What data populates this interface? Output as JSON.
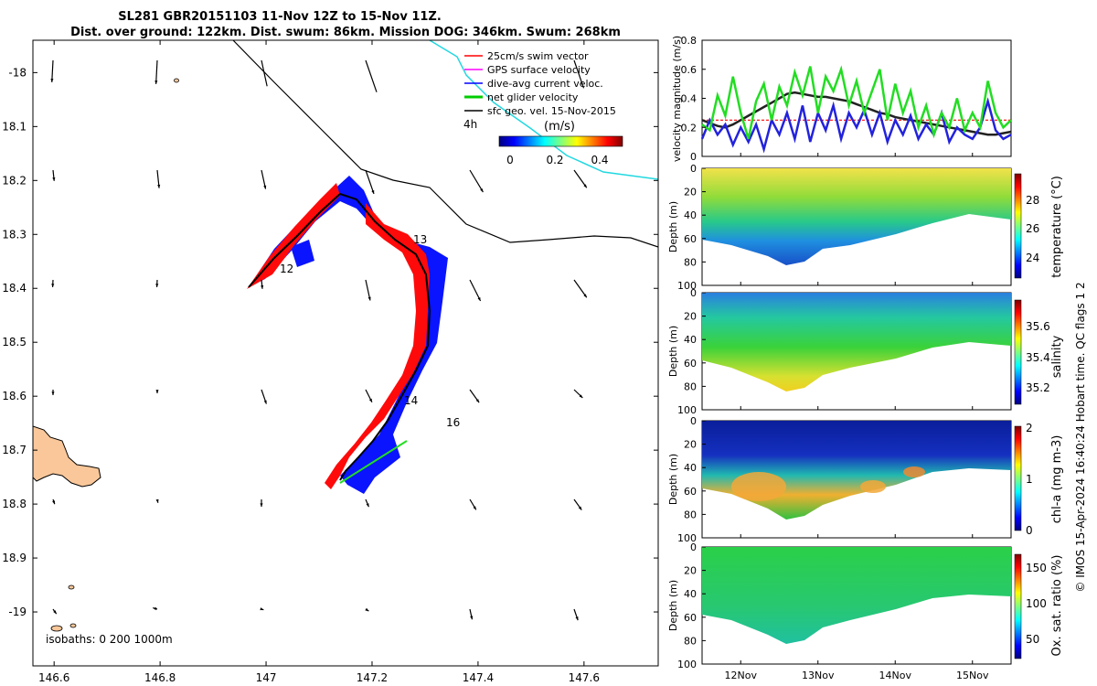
{
  "title_line1": "SL281 GBR20151103 11-Nov 12Z to 15-Nov 11Z.",
  "title_line2": "Dist. over ground: 122km. Dist. swum: 86km. Mission DOG: 346km. Swum: 268km",
  "map": {
    "xticks": [
      "146.6",
      "146.8",
      "147",
      "147.2",
      "147.4",
      "147.6"
    ],
    "xtick_values": [
      146.6,
      146.8,
      147.0,
      147.2,
      147.4,
      147.6
    ],
    "yticks": [
      "-18",
      "18.1",
      "18.2",
      "18.3",
      "18.4",
      "18.5",
      "18.6",
      "18.7",
      "18.8",
      "18.9",
      "-19"
    ],
    "ytick_values": [
      -18.0,
      -18.1,
      -18.2,
      -18.3,
      -18.4,
      -18.5,
      -18.6,
      -18.7,
      -18.8,
      -18.9,
      -19.0
    ],
    "xlim": [
      146.56,
      147.74
    ],
    "ylim": [
      -19.1,
      -17.94
    ],
    "legend": [
      {
        "label": "25cm/s swim vector",
        "color": "#ff0000"
      },
      {
        "label": "GPS surface velocity",
        "color": "#ff00ff"
      },
      {
        "label": "dive-avg current veloc.",
        "color": "#0000ff"
      },
      {
        "label": "net glider velocity",
        "color": "#00cc00"
      },
      {
        "label": "sfc geo. vel. 15-Nov-2015",
        "color": "#000000"
      }
    ],
    "arrow_scale_label": "4h",
    "colorbar_units": "(m/s)",
    "colorbar_ticks": [
      "0",
      "0.2",
      "0.4"
    ],
    "day_labels": [
      "12",
      "13",
      "14",
      "16"
    ],
    "isobaths_label": "isobaths: 0   200  1000m"
  },
  "side_text": "© IMOS 15-Apr-2024 16:40:24 Hobart time. QC flags 1  2",
  "chart_data": [
    {
      "type": "line",
      "title": "",
      "ylabel": "velocity magnitude (m/s)",
      "ylim": [
        0,
        0.8
      ],
      "yticks": [
        "0",
        "0.2",
        "0.4",
        "0.6",
        "0.8"
      ],
      "ytick_values": [
        0,
        0.2,
        0.4,
        0.6,
        0.8
      ],
      "xlim": [
        11.5,
        15.5
      ],
      "x": [
        11.5,
        11.6,
        11.7,
        11.8,
        11.9,
        12.0,
        12.1,
        12.2,
        12.3,
        12.4,
        12.5,
        12.6,
        12.7,
        12.8,
        12.9,
        13.0,
        13.1,
        13.2,
        13.3,
        13.4,
        13.5,
        13.6,
        13.7,
        13.8,
        13.9,
        14.0,
        14.1,
        14.2,
        14.3,
        14.4,
        14.5,
        14.6,
        14.7,
        14.8,
        14.9,
        15.0,
        15.1,
        15.2,
        15.3,
        15.4,
        15.5
      ],
      "series": [
        {
          "name": "net glider velocity",
          "color": "#22dd22",
          "values": [
            0.22,
            0.18,
            0.42,
            0.28,
            0.55,
            0.3,
            0.12,
            0.38,
            0.5,
            0.25,
            0.48,
            0.35,
            0.58,
            0.42,
            0.62,
            0.3,
            0.55,
            0.45,
            0.6,
            0.35,
            0.52,
            0.3,
            0.45,
            0.6,
            0.25,
            0.5,
            0.3,
            0.45,
            0.2,
            0.35,
            0.15,
            0.3,
            0.2,
            0.4,
            0.18,
            0.3,
            0.2,
            0.52,
            0.3,
            0.2,
            0.25
          ]
        },
        {
          "name": "dive-avg current veloc.",
          "color": "#2222dd",
          "values": [
            0.12,
            0.25,
            0.15,
            0.22,
            0.08,
            0.2,
            0.1,
            0.22,
            0.05,
            0.25,
            0.15,
            0.3,
            0.12,
            0.35,
            0.1,
            0.3,
            0.18,
            0.35,
            0.12,
            0.3,
            0.2,
            0.32,
            0.15,
            0.3,
            0.1,
            0.25,
            0.15,
            0.28,
            0.12,
            0.22,
            0.15,
            0.3,
            0.1,
            0.2,
            0.15,
            0.12,
            0.2,
            0.38,
            0.18,
            0.12,
            0.15
          ]
        },
        {
          "name": "sfc geo. vel.",
          "color": "#222222",
          "values": [
            0.25,
            0.23,
            0.21,
            0.2,
            0.22,
            0.25,
            0.28,
            0.31,
            0.34,
            0.37,
            0.4,
            0.43,
            0.44,
            0.43,
            0.42,
            0.41,
            0.41,
            0.4,
            0.39,
            0.38,
            0.36,
            0.34,
            0.32,
            0.3,
            0.29,
            0.27,
            0.26,
            0.25,
            0.24,
            0.23,
            0.22,
            0.21,
            0.2,
            0.19,
            0.18,
            0.17,
            0.16,
            0.15,
            0.15,
            0.16,
            0.17
          ]
        },
        {
          "name": "25cm/s swim",
          "color": "#ff0000",
          "values": [
            0.25,
            0.25,
            0.25,
            0.25,
            0.25,
            0.25,
            0.25,
            0.25,
            0.25,
            0.25,
            0.25,
            0.25,
            0.25,
            0.25,
            0.25,
            0.25,
            0.25,
            0.25,
            0.25,
            0.25,
            0.25,
            0.25,
            0.25,
            0.25,
            0.25,
            0.25,
            0.25,
            0.25,
            0.25,
            0.25,
            0.25,
            0.25,
            0.25,
            0.25,
            0.25,
            0.25,
            0.25,
            0.25,
            0.25,
            0.25,
            0.25
          ]
        }
      ]
    },
    {
      "type": "heatmap",
      "ylabel": "Depth (m)",
      "colorbar_label": "temperature (°C)",
      "colorbar_ticks": [
        "24",
        "26",
        "28"
      ],
      "colorbar_tick_values": [
        24,
        26,
        28
      ],
      "clim": [
        22.5,
        29.5
      ],
      "ylim": [
        100,
        0
      ],
      "yticks": [
        "0",
        "20",
        "40",
        "60",
        "80",
        "100"
      ],
      "xlim": [
        11.5,
        15.5
      ]
    },
    {
      "type": "heatmap",
      "ylabel": "Depth (m)",
      "colorbar_label": "salinity",
      "colorbar_ticks": [
        "35.2",
        "35.4",
        "35.6"
      ],
      "colorbar_tick_values": [
        35.2,
        35.4,
        35.6
      ],
      "clim": [
        35.1,
        35.7
      ],
      "ylim": [
        100,
        0
      ],
      "yticks": [
        "0",
        "20",
        "40",
        "60",
        "80",
        "100"
      ],
      "xlim": [
        11.5,
        15.5
      ]
    },
    {
      "type": "heatmap",
      "ylabel": "Depth (m)",
      "colorbar_label": "chl-a (mg m-3)",
      "colorbar_ticks": [
        "0",
        "1",
        "2"
      ],
      "colorbar_tick_values": [
        0,
        1,
        2
      ],
      "clim": [
        0,
        2
      ],
      "ylim": [
        100,
        0
      ],
      "yticks": [
        "0",
        "20",
        "40",
        "60",
        "80",
        "100"
      ],
      "xlim": [
        11.5,
        15.5
      ]
    },
    {
      "type": "heatmap",
      "ylabel": "Depth (m)",
      "colorbar_label": "Ox. sat. ratio (%)",
      "colorbar_ticks": [
        "50",
        "100",
        "150"
      ],
      "colorbar_tick_values": [
        50,
        100,
        150
      ],
      "clim": [
        20,
        175
      ],
      "ylim": [
        100,
        0
      ],
      "yticks": [
        "0",
        "20",
        "40",
        "60",
        "80",
        "100"
      ],
      "xlim": [
        11.5,
        15.5
      ],
      "xticks": [
        "12Nov",
        "13Nov",
        "14Nov",
        "15Nov"
      ],
      "xtick_values": [
        12,
        13,
        14,
        15
      ]
    }
  ]
}
